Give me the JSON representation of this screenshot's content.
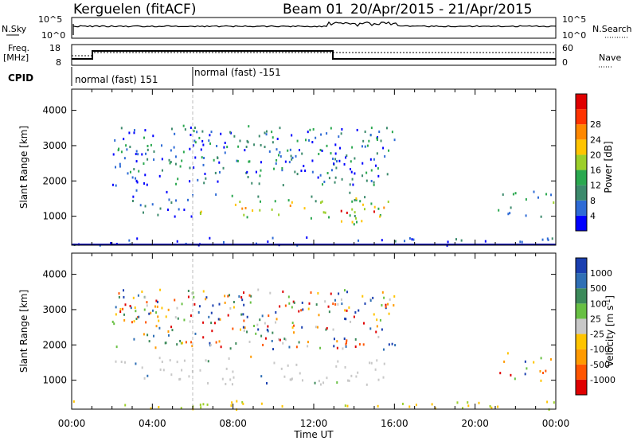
{
  "header": {
    "station": "Kerguelen (fitACF)",
    "beam": "Beam 01",
    "date_range": "20/Apr/2015 - 21/Apr/2015"
  },
  "top_panels": {
    "nsky_label": "N.Sky",
    "nsky_ticks": [
      "10^5",
      "10^0"
    ],
    "nsearch_label": "N.Search",
    "nsearch_ticks": [
      "10^5",
      "10^0"
    ],
    "freq_label_1": "Freq.",
    "freq_label_2": "[MHz]",
    "freq_ticks": [
      "18",
      "8"
    ],
    "nave_label": "Nave",
    "nave_ticks": [
      "60",
      "0"
    ],
    "cpid_label": "CPID",
    "cpid_modes": [
      {
        "text": "normal (fast) 151",
        "start_hour": 0
      },
      {
        "text": "normal (fast) -151",
        "start_hour": 6
      }
    ]
  },
  "time_axis": {
    "label": "Time UT",
    "ticks": [
      "00:00",
      "04:00",
      "08:00",
      "12:00",
      "16:00",
      "20:00",
      "00:00"
    ]
  },
  "chart_data": [
    {
      "type": "heatmap",
      "name": "power",
      "ylabel": "Slant Range [km]",
      "ylim": [
        180,
        4600
      ],
      "yticks": [
        "1000",
        "2000",
        "3000",
        "4000"
      ],
      "xlim_hours": [
        0,
        24
      ],
      "colorbar": {
        "label": "Power [dB]",
        "ticks": [
          "4",
          "8",
          "12",
          "16",
          "20",
          "24",
          "28"
        ],
        "colors": [
          "#0000ff",
          "#2e6bd6",
          "#3c8a6c",
          "#2aa84f",
          "#9ccf2a",
          "#ffc400",
          "#ff8800",
          "#ff3300",
          "#e00000"
        ]
      },
      "regions": [
        {
          "x": [
            6.3,
            15.7
          ],
          "y": [
            900,
            1700
          ],
          "intensity": "high"
        },
        {
          "x": [
            13.0,
            15.8
          ],
          "y": [
            800,
            1500
          ],
          "intensity": "very-high"
        },
        {
          "x": [
            2.0,
            6.0
          ],
          "y": [
            1000,
            1800
          ],
          "intensity": "low"
        },
        {
          "x": [
            21.0,
            24.0
          ],
          "y": [
            1000,
            1800
          ],
          "intensity": "mixed"
        },
        {
          "x": [
            0,
            24
          ],
          "y": [
            200,
            450
          ],
          "intensity": "low"
        }
      ]
    },
    {
      "type": "heatmap",
      "name": "velocity",
      "ylabel": "Slant Range [km]",
      "ylim": [
        180,
        4600
      ],
      "yticks": [
        "1000",
        "2000",
        "3000",
        "4000"
      ],
      "xlim_hours": [
        0,
        24
      ],
      "colorbar": {
        "label": "Velocity [m s^-1]",
        "ticks": [
          "1000",
          "500",
          "100",
          "25",
          "-25",
          "-100",
          "-500",
          "-1000"
        ],
        "colors": [
          "#1a3fb0",
          "#2f6fb5",
          "#3c8a5a",
          "#68c043",
          "#c8c8c8",
          "#ffc400",
          "#ff9a00",
          "#ff5500",
          "#e00000"
        ]
      },
      "regions": [
        {
          "x": [
            6.3,
            15.7
          ],
          "y": [
            900,
            1700
          ],
          "velocity": "ground-scatter"
        },
        {
          "x": [
            2.0,
            6.0
          ],
          "y": [
            1000,
            1800
          ],
          "velocity": "ground-scatter"
        },
        {
          "x": [
            21.0,
            24.0
          ],
          "y": [
            1000,
            1800
          ],
          "velocity": "mixed"
        },
        {
          "x": [
            0,
            24
          ],
          "y": [
            200,
            450
          ],
          "velocity": "low-negative"
        }
      ]
    }
  ],
  "colors": {
    "ground_scatter": "#c8c8c8"
  }
}
